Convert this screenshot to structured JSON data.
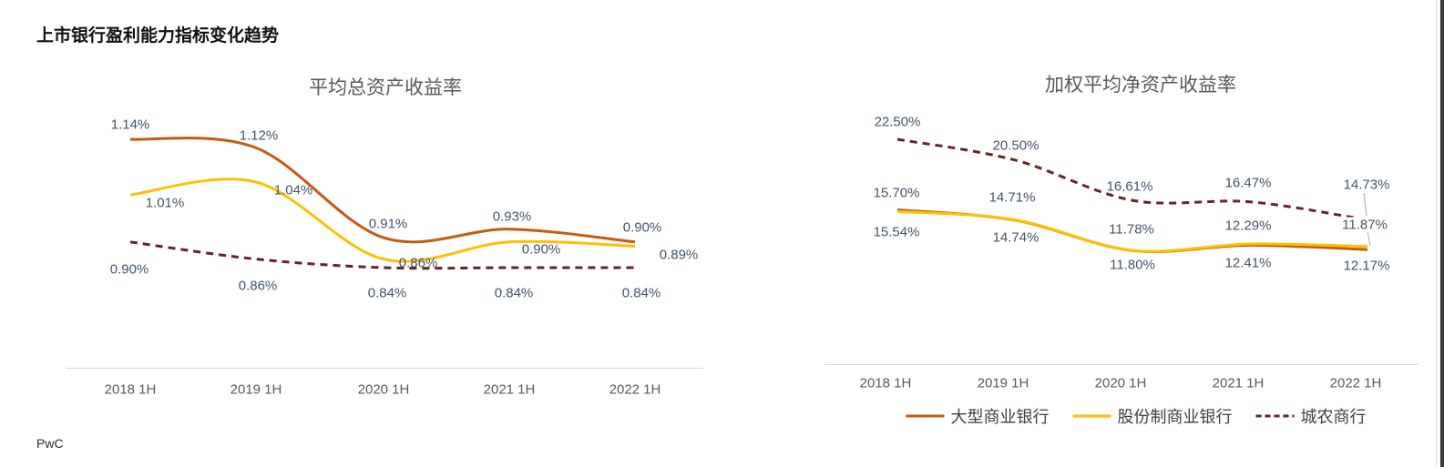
{
  "page": {
    "title": "上市银行盈利能力指标变化趋势",
    "footer_logo": "PwC"
  },
  "legend": {
    "items": [
      {
        "key": "large-commercial-banks",
        "label": "大型商业银行",
        "color": "#C55A11",
        "style": "solid"
      },
      {
        "key": "joint-stock-commercial-banks",
        "label": "股份制商业银行",
        "color": "#FFC000",
        "style": "solid"
      },
      {
        "key": "city-rural-commercial-banks",
        "label": "城农商行",
        "color": "#632523",
        "style": "dashed"
      }
    ]
  },
  "chart_data": [
    {
      "type": "line",
      "title": "平均总资产收益率",
      "unit": "%",
      "categories": [
        "2018 1H",
        "2019 1H",
        "2020 1H",
        "2021 1H",
        "2022 1H"
      ],
      "legend_position": "none",
      "grid": false,
      "series": [
        {
          "key": "large-commercial-banks",
          "name": "大型商业银行",
          "color": "#C55A11",
          "style": "solid",
          "values": [
            1.14,
            1.12,
            0.91,
            0.93,
            0.9
          ],
          "labels": [
            "1.14%",
            "1.12%",
            "0.91%",
            "0.93%",
            "0.90%"
          ]
        },
        {
          "key": "joint-stock-commercial-banks",
          "name": "股份制商业银行",
          "color": "#FFC000",
          "style": "solid",
          "values": [
            1.01,
            1.04,
            0.86,
            0.9,
            0.89
          ],
          "labels": [
            "1.01%",
            "1.04%",
            "0.86%",
            "0.90%",
            "0.89%"
          ]
        },
        {
          "key": "city-rural-commercial-banks",
          "name": "城农商行",
          "color": "#632523",
          "style": "dashed",
          "values": [
            0.9,
            0.86,
            0.84,
            0.84,
            0.84
          ],
          "labels": [
            "0.90%",
            "0.86%",
            "0.84%",
            "0.84%",
            "0.84%"
          ]
        }
      ]
    },
    {
      "type": "line",
      "title": "加权平均净资产收益率",
      "unit": "%",
      "categories": [
        "2018 1H",
        "2019 1H",
        "2020 1H",
        "2021 1H",
        "2022 1H"
      ],
      "legend_position": "bottom",
      "grid": false,
      "series": [
        {
          "key": "large-commercial-banks",
          "name": "大型商业银行",
          "color": "#C55A11",
          "style": "solid",
          "values": [
            15.7,
            14.71,
            11.78,
            12.29,
            11.87
          ],
          "labels": [
            "15.70%",
            "14.71%",
            "11.78%",
            "12.29%",
            "11.87%"
          ]
        },
        {
          "key": "joint-stock-commercial-banks",
          "name": "股份制商业银行",
          "color": "#FFC000",
          "style": "solid",
          "values": [
            15.54,
            14.74,
            11.8,
            12.41,
            12.17
          ],
          "labels": [
            "15.54%",
            "14.74%",
            "11.80%",
            "12.41%",
            "12.17%"
          ]
        },
        {
          "key": "city-rural-commercial-banks",
          "name": "城农商行",
          "color": "#632523",
          "style": "dashed",
          "values": [
            22.5,
            20.5,
            16.61,
            16.47,
            14.73
          ],
          "labels": [
            "22.50%",
            "20.50%",
            "16.61%",
            "16.47%",
            "14.73%"
          ]
        }
      ]
    }
  ]
}
